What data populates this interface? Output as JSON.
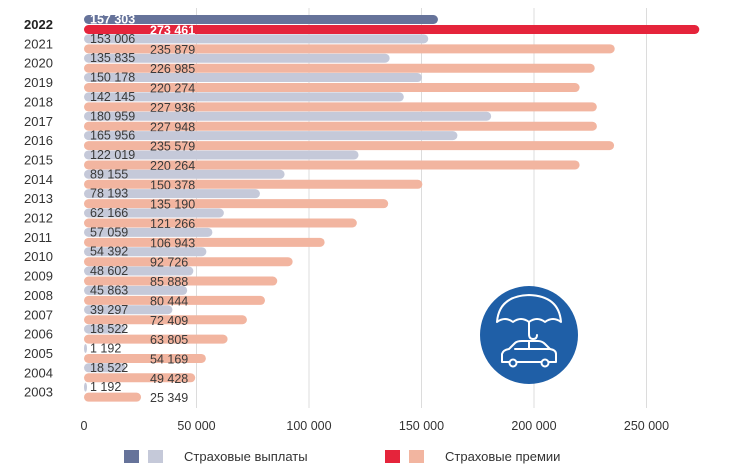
{
  "chart_data": {
    "type": "bar",
    "orientation": "horizontal",
    "categories": [
      "2022",
      "2021",
      "2020",
      "2019",
      "2018",
      "2017",
      "2016",
      "2015",
      "2014",
      "2013",
      "2012",
      "2011",
      "2010",
      "2009",
      "2008",
      "2007",
      "2006",
      "2005",
      "2004",
      "2003"
    ],
    "highlight_category": "2022",
    "series": [
      {
        "name": "Страховые выплаты",
        "color": "#c5c9d9",
        "highlight_color": "#66739a",
        "values": [
          157303,
          153006,
          135835,
          150178,
          142145,
          180959,
          165956,
          122019,
          89155,
          78193,
          62166,
          57059,
          54392,
          48602,
          45863,
          39297,
          18522,
          1192,
          18522,
          1192
        ],
        "labels": [
          "157 303",
          "153 006",
          "135 835",
          "150 178",
          "142 145",
          "180 959",
          "165 956",
          "122 019",
          "89 155",
          "78 193",
          "62 166",
          "57 059",
          "54 392",
          "48 602",
          "45 863",
          "39 297",
          "18 522",
          "1 192",
          "18 522",
          "1 192"
        ]
      },
      {
        "name": "Страховые премии",
        "color": "#f2b5a0",
        "highlight_color": "#e5243b",
        "values": [
          273461,
          235879,
          226985,
          220274,
          227936,
          227948,
          235579,
          220264,
          150378,
          135190,
          121266,
          106943,
          92726,
          85888,
          80444,
          72409,
          63805,
          54169,
          49428,
          25349
        ],
        "labels": [
          "273 461",
          "235 879",
          "226 985",
          "220 274",
          "227 936",
          "227 948",
          "235 579",
          "220 264",
          "150 378",
          "135 190",
          "121 266",
          "106 943",
          "92 726",
          "85 888",
          "80 444",
          "72 409",
          "63 805",
          "54 169",
          "49 428",
          "25 349"
        ]
      }
    ],
    "x_ticks": [
      0,
      50000,
      100000,
      150000,
      200000,
      250000
    ],
    "x_tick_labels": [
      "0",
      "50 000",
      "100 000",
      "150 000",
      "200 000",
      "250 000"
    ],
    "xlim": [
      0,
      280000
    ],
    "grid": "vertical",
    "legend_position": "bottom"
  },
  "legend": {
    "payouts_label": "Страховые выплаты",
    "premiums_label": "Страховые премии"
  },
  "badge": {
    "icon": "umbrella-car-icon",
    "color": "#1f5fa7"
  }
}
